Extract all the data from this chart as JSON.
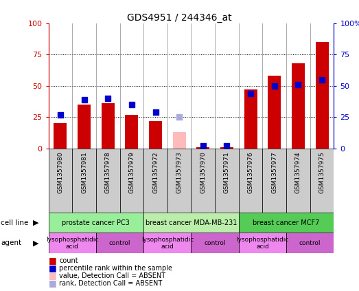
{
  "title": "GDS4951 / 244346_at",
  "samples": [
    "GSM1357980",
    "GSM1357981",
    "GSM1357978",
    "GSM1357979",
    "GSM1357972",
    "GSM1357973",
    "GSM1357970",
    "GSM1357971",
    "GSM1357976",
    "GSM1357977",
    "GSM1357974",
    "GSM1357975"
  ],
  "count_values": [
    20,
    35,
    36,
    27,
    22,
    null,
    1,
    1,
    47,
    58,
    68,
    85
  ],
  "rank_values": [
    27,
    39,
    40,
    35,
    29,
    null,
    2,
    2,
    44,
    50,
    51,
    55
  ],
  "absent_count": [
    null,
    null,
    null,
    null,
    null,
    13,
    null,
    null,
    null,
    null,
    null,
    null
  ],
  "absent_rank": [
    null,
    null,
    null,
    null,
    null,
    25,
    null,
    null,
    null,
    null,
    null,
    null
  ],
  "bar_color_present": "#cc0000",
  "bar_color_absent": "#ffbbbb",
  "dot_color_present": "#0000cc",
  "dot_color_absent": "#aaaadd",
  "cell_line_groups": [
    {
      "label": "prostate cancer PC3",
      "start": 0,
      "end": 3,
      "color": "#99ee99"
    },
    {
      "label": "breast cancer MDA-MB-231",
      "start": 4,
      "end": 7,
      "color": "#bbeeaa"
    },
    {
      "label": "breast cancer MCF7",
      "start": 8,
      "end": 11,
      "color": "#55cc55"
    }
  ],
  "agent_groups": [
    {
      "label": "lysophosphatidic\nacid",
      "start": 0,
      "end": 1,
      "color": "#ee88ee"
    },
    {
      "label": "control",
      "start": 2,
      "end": 3,
      "color": "#cc66cc"
    },
    {
      "label": "lysophosphatidic\nacid",
      "start": 4,
      "end": 5,
      "color": "#ee88ee"
    },
    {
      "label": "control",
      "start": 6,
      "end": 7,
      "color": "#cc66cc"
    },
    {
      "label": "lysophosphatidic\nacid",
      "start": 8,
      "end": 9,
      "color": "#ee88ee"
    },
    {
      "label": "control",
      "start": 10,
      "end": 11,
      "color": "#cc66cc"
    }
  ],
  "ylim": [
    0,
    100
  ],
  "yticks": [
    0,
    25,
    50,
    75,
    100
  ],
  "ytick_labels_left": [
    "0",
    "25",
    "50",
    "75",
    "100"
  ],
  "ytick_labels_right": [
    "0",
    "25",
    "50",
    "75",
    "100%"
  ],
  "left_axis_color": "#cc0000",
  "right_axis_color": "#0000cc",
  "background_color": "#ffffff",
  "sample_bg_color": "#cccccc",
  "bar_width": 0.55,
  "dot_size": 40
}
